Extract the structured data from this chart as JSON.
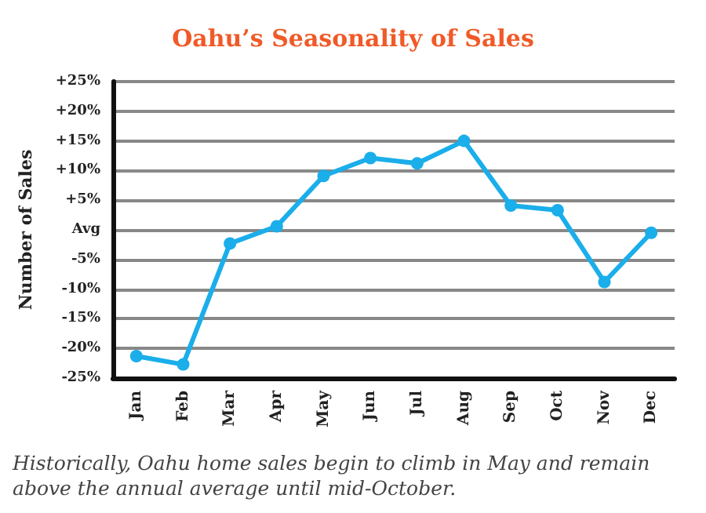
{
  "chart_data": {
    "type": "line",
    "title": "Oahu’s Seasonality of Sales",
    "ylabel": "Number of Sales",
    "categories": [
      "Jan",
      "Feb",
      "Mar",
      "Apr",
      "May",
      "Jun",
      "Jul",
      "Aug",
      "Sep",
      "Oct",
      "Nov",
      "Dec"
    ],
    "series": [
      {
        "color": "#1aaeea",
        "values": [
          -21.3,
          -22.7,
          -2.3,
          0.6,
          9.1,
          12.1,
          11.2,
          15,
          4.1,
          3.3,
          -8.8,
          -0.5
        ]
      }
    ],
    "ylim": [
      -25,
      25
    ],
    "yticks": [
      {
        "value": -25,
        "label": "-25%"
      },
      {
        "value": -20,
        "label": "-20%"
      },
      {
        "value": -15,
        "label": "-15%"
      },
      {
        "value": -10,
        "label": "-10%"
      },
      {
        "value": -5,
        "label": "-5%"
      },
      {
        "value": 0,
        "label": "Avg"
      },
      {
        "value": 5,
        "label": "+5%"
      },
      {
        "value": 10,
        "label": "+10%"
      },
      {
        "value": 15,
        "label": "+15%"
      },
      {
        "value": 20,
        "label": "+20%"
      },
      {
        "value": 25,
        "label": "+25%"
      }
    ],
    "grid": "y",
    "marker": "circle",
    "line_style": "solid",
    "annotations": [
      "Historically, Oahu home sales begin to climb in May and remain above the annual average until mid-October."
    ]
  }
}
